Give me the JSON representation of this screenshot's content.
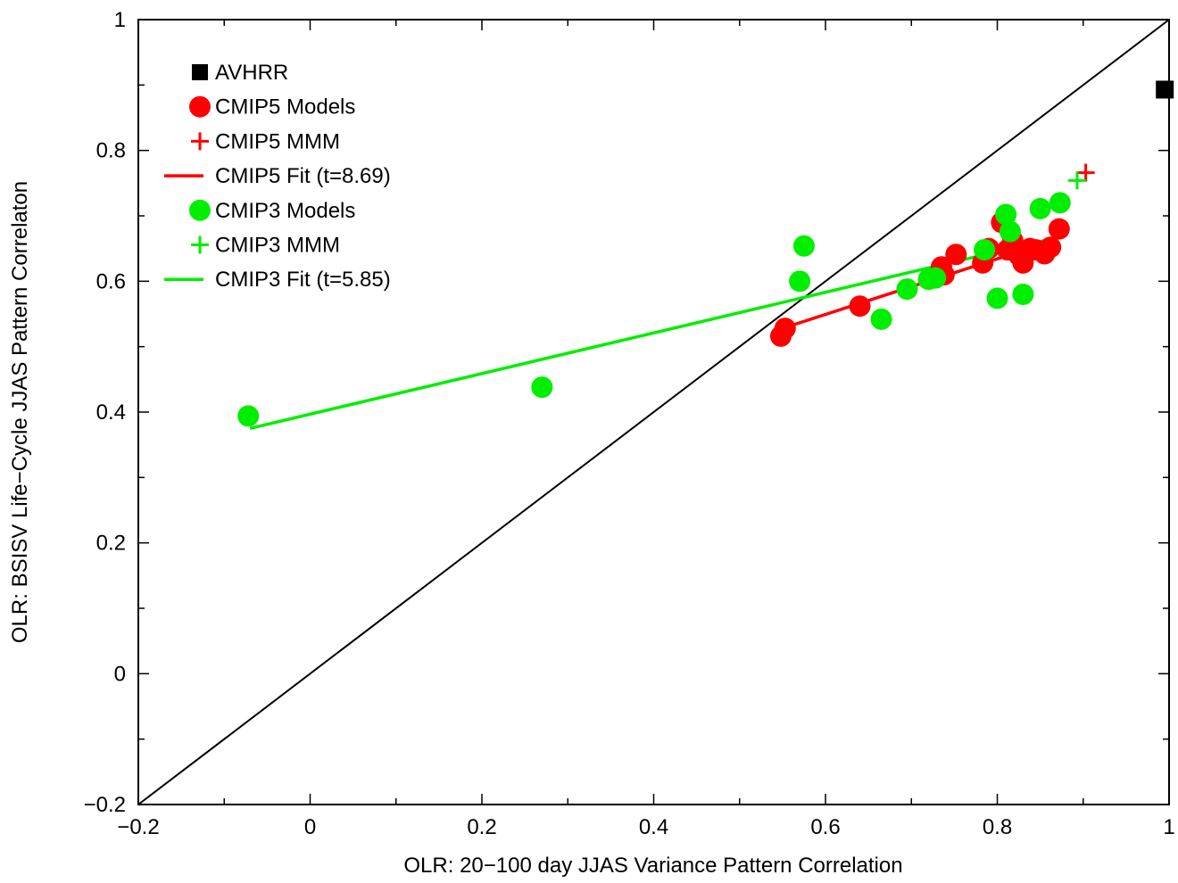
{
  "chart_data": {
    "type": "scatter",
    "title": "",
    "xlabel": "OLR: 20−100 day JJAS Variance Pattern Correlation",
    "ylabel": "OLR: BSISV Life−Cycle JJAS Pattern Correlaton",
    "xlim": [
      -0.2,
      1
    ],
    "ylim": [
      -0.2,
      1
    ],
    "xticks": [
      -0.2,
      0,
      0.2,
      0.4,
      0.6,
      0.8,
      1
    ],
    "yticks": [
      -0.2,
      0,
      0.2,
      0.4,
      0.6,
      0.8,
      1
    ],
    "xtick_labels": [
      "−0.2",
      "0",
      "0.2",
      "0.4",
      "0.6",
      "0.8",
      "1"
    ],
    "ytick_labels": [
      "−0.2",
      "0",
      "0.2",
      "0.4",
      "0.6",
      "0.8",
      "1"
    ],
    "grid": false,
    "legend_position": "top-left",
    "reference_line": {
      "x": [
        -0.2,
        1
      ],
      "y": [
        -0.2,
        1
      ],
      "color": "#000000"
    },
    "series": [
      {
        "name": "AVHRR",
        "marker": "square",
        "color": "#000000",
        "points": [
          [
            0.995,
            0.893
          ]
        ]
      },
      {
        "name": "CMIP5 Models",
        "marker": "circle",
        "color": "#ff0000",
        "points": [
          [
            0.548,
            0.516
          ],
          [
            0.553,
            0.528
          ],
          [
            0.64,
            0.562
          ],
          [
            0.735,
            0.622
          ],
          [
            0.738,
            0.61
          ],
          [
            0.752,
            0.641
          ],
          [
            0.783,
            0.628
          ],
          [
            0.79,
            0.65
          ],
          [
            0.805,
            0.69
          ],
          [
            0.812,
            0.648
          ],
          [
            0.818,
            0.662
          ],
          [
            0.825,
            0.64
          ],
          [
            0.83,
            0.628
          ],
          [
            0.838,
            0.65
          ],
          [
            0.845,
            0.648
          ],
          [
            0.855,
            0.642
          ],
          [
            0.862,
            0.652
          ],
          [
            0.872,
            0.68
          ]
        ]
      },
      {
        "name": "CMIP5 MMM",
        "marker": "plus",
        "color": "#ff0000",
        "points": [
          [
            0.903,
            0.766
          ]
        ]
      },
      {
        "name": "CMIP5 Fit (t=8.69)",
        "marker": "line",
        "color": "#ff0000",
        "points": [
          [
            0.55,
            0.528
          ],
          [
            0.87,
            0.664
          ]
        ]
      },
      {
        "name": "CMIP3 Models",
        "marker": "circle",
        "color": "#00ee00",
        "points": [
          [
            -0.072,
            0.394
          ],
          [
            0.27,
            0.438
          ],
          [
            0.57,
            0.6
          ],
          [
            0.575,
            0.654
          ],
          [
            0.665,
            0.542
          ],
          [
            0.695,
            0.588
          ],
          [
            0.72,
            0.603
          ],
          [
            0.728,
            0.605
          ],
          [
            0.785,
            0.648
          ],
          [
            0.8,
            0.574
          ],
          [
            0.81,
            0.702
          ],
          [
            0.815,
            0.676
          ],
          [
            0.83,
            0.58
          ],
          [
            0.85,
            0.711
          ],
          [
            0.873,
            0.72
          ]
        ]
      },
      {
        "name": "CMIP3 MMM",
        "marker": "plus",
        "color": "#00ee00",
        "points": [
          [
            0.893,
            0.754
          ]
        ]
      },
      {
        "name": "CMIP3 Fit (t=5.85)",
        "marker": "line",
        "color": "#00ee00",
        "points": [
          [
            -0.07,
            0.375
          ],
          [
            0.87,
            0.667
          ]
        ]
      }
    ]
  }
}
